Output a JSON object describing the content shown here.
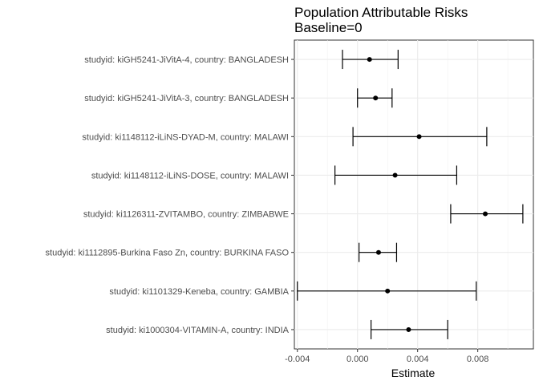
{
  "chart_data": {
    "type": "forest",
    "title": "Population Attributable Risks",
    "subtitle": "Baseline=0",
    "xlabel": "Estimate",
    "ylabel": "",
    "xlim": [
      -0.0042,
      0.0117
    ],
    "x_ticks": [
      -0.004,
      0.0,
      0.004,
      0.008
    ],
    "x_tick_labels": [
      "-0.004",
      "0.000",
      "0.004",
      "0.008"
    ],
    "grid": true,
    "series": [
      {
        "categories": [
          "studyid: kiGH5241-JiVitA-4, country: BANGLADESH",
          "studyid: kiGH5241-JiVitA-3, country: BANGLADESH",
          "studyid: ki1148112-iLiNS-DYAD-M, country: MALAWI",
          "studyid: ki1148112-iLiNS-DOSE, country: MALAWI",
          "studyid: ki1126311-ZVITAMBO, country: ZIMBABWE",
          "studyid: ki1112895-Burkina Faso Zn, country: BURKINA FASO",
          "studyid: ki1101329-Keneba, country: GAMBIA",
          "studyid: ki1000304-VITAMIN-A, country: INDIA"
        ],
        "estimate": [
          0.0008,
          0.0012,
          0.0041,
          0.0025,
          0.0085,
          0.0014,
          0.002,
          0.0034
        ],
        "lower": [
          -0.001,
          0.0,
          -0.0003,
          -0.0015,
          0.0062,
          0.0001,
          -0.004,
          0.0009
        ],
        "upper": [
          0.0027,
          0.0023,
          0.0086,
          0.0066,
          0.011,
          0.0026,
          0.0079,
          0.006
        ]
      }
    ]
  }
}
